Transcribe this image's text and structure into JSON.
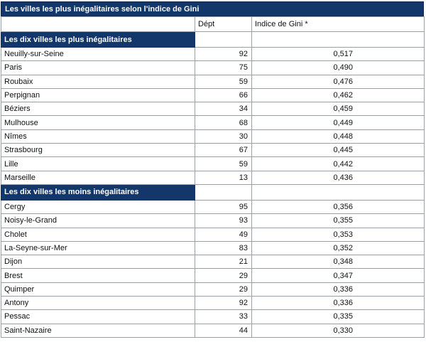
{
  "title": "Les villes les plus inégalitaires selon l'indice de Gini",
  "columns": {
    "city": "",
    "dept": "Dépt",
    "gini": "Indice de Gini *"
  },
  "sections": [
    {
      "label": "Les dix villes les plus inégalitaires",
      "rows": [
        {
          "city": "Neuilly-sur-Seine",
          "dept": "92",
          "gini": "0,517"
        },
        {
          "city": "Paris",
          "dept": "75",
          "gini": "0,490"
        },
        {
          "city": "Roubaix",
          "dept": "59",
          "gini": "0,476"
        },
        {
          "city": "Perpignan",
          "dept": "66",
          "gini": "0,462"
        },
        {
          "city": "Béziers",
          "dept": "34",
          "gini": "0,459"
        },
        {
          "city": "Mulhouse",
          "dept": "68",
          "gini": "0,449"
        },
        {
          "city": "Nîmes",
          "dept": "30",
          "gini": "0,448"
        },
        {
          "city": "Strasbourg",
          "dept": "67",
          "gini": "0,445"
        },
        {
          "city": "Lille",
          "dept": "59",
          "gini": "0,442"
        },
        {
          "city": "Marseille",
          "dept": "13",
          "gini": "0,436"
        }
      ]
    },
    {
      "label": "Les dix villes les moins inégalitaires",
      "rows": [
        {
          "city": "Cergy",
          "dept": "95",
          "gini": "0,356"
        },
        {
          "city": "Noisy-le-Grand",
          "dept": "93",
          "gini": "0,355"
        },
        {
          "city": "Cholet",
          "dept": "49",
          "gini": "0,353"
        },
        {
          "city": "La-Seyne-sur-Mer",
          "dept": "83",
          "gini": "0,352"
        },
        {
          "city": "Dijon",
          "dept": "21",
          "gini": "0,348"
        },
        {
          "city": "Brest",
          "dept": "29",
          "gini": "0,347"
        },
        {
          "city": "Quimper",
          "dept": "29",
          "gini": "0,336"
        },
        {
          "city": "Antony",
          "dept": "92",
          "gini": "0,336"
        },
        {
          "city": "Pessac",
          "dept": "33",
          "gini": "0,335"
        },
        {
          "city": "Saint-Nazaire",
          "dept": "44",
          "gini": "0,330"
        }
      ]
    }
  ]
}
